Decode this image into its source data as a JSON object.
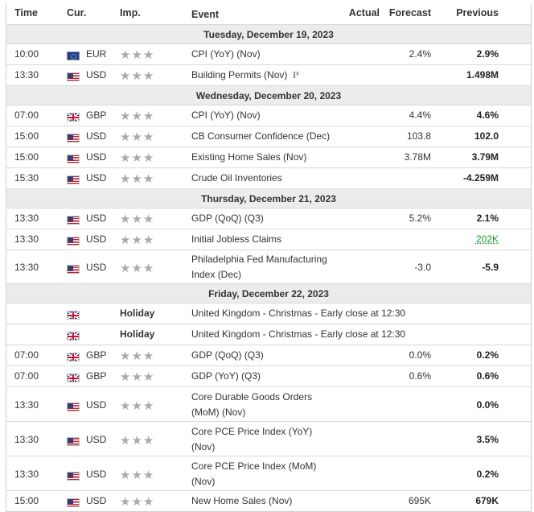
{
  "header": {
    "time": "Time",
    "currency": "Cur.",
    "importance": "Imp.",
    "event": "Event",
    "actual": "Actual",
    "forecast": "Forecast",
    "previous": "Previous"
  },
  "icons": {
    "importance": "three-gray-stars",
    "preliminary": "preliminary-p-icon",
    "flags": {
      "EUR": "eu-flag",
      "USD": "us-flag",
      "GBP": "uk-flag"
    }
  },
  "colors": {
    "date_band": "#ececec",
    "positive_previous": "#1a9c2e",
    "stars": "#aaaaaa"
  },
  "days": [
    {
      "date": "Tuesday, December 19, 2023",
      "events": [
        {
          "time": "10:00",
          "flag": "eu",
          "currency": "EUR",
          "importance": "★★★",
          "event": "CPI (YoY) (Nov)",
          "actual": "",
          "forecast": "2.4%",
          "previous": "2.9%"
        },
        {
          "time": "13:30",
          "flag": "us",
          "currency": "USD",
          "importance": "★★★",
          "event": "Building Permits (Nov)",
          "preliminary": "P",
          "actual": "",
          "forecast": "",
          "previous": "1.498M"
        }
      ]
    },
    {
      "date": "Wednesday, December 20, 2023",
      "events": [
        {
          "time": "07:00",
          "flag": "gb",
          "currency": "GBP",
          "importance": "★★★",
          "event": "CPI (YoY) (Nov)",
          "actual": "",
          "forecast": "4.4%",
          "previous": "4.6%"
        },
        {
          "time": "15:00",
          "flag": "us",
          "currency": "USD",
          "importance": "★★★",
          "event": "CB Consumer Confidence (Dec)",
          "actual": "",
          "forecast": "103.8",
          "previous": "102.0"
        },
        {
          "time": "15:00",
          "flag": "us",
          "currency": "USD",
          "importance": "★★★",
          "event": "Existing Home Sales (Nov)",
          "actual": "",
          "forecast": "3.78M",
          "previous": "3.79M"
        },
        {
          "time": "15:30",
          "flag": "us",
          "currency": "USD",
          "importance": "★★★",
          "event": "Crude Oil Inventories",
          "actual": "",
          "forecast": "",
          "previous": "-4.259M"
        }
      ]
    },
    {
      "date": "Thursday, December 21, 2023",
      "events": [
        {
          "time": "13:30",
          "flag": "us",
          "currency": "USD",
          "importance": "★★★",
          "event": "GDP (QoQ) (Q3)",
          "actual": "",
          "forecast": "5.2%",
          "previous": "2.1%"
        },
        {
          "time": "13:30",
          "flag": "us",
          "currency": "USD",
          "importance": "★★★",
          "event": "Initial Jobless Claims",
          "actual": "",
          "forecast": "",
          "previous": "202K",
          "previous_positive": true
        },
        {
          "time": "13:30",
          "flag": "us",
          "currency": "USD",
          "importance": "★★★",
          "event": "Philadelphia Fed Manufacturing",
          "event2": "Index (Dec)",
          "actual": "",
          "forecast": "-3.0",
          "previous": "-5.9"
        }
      ]
    },
    {
      "date": "Friday, December 22, 2023",
      "events": [
        {
          "time": "",
          "flag": "gb",
          "currency": "",
          "importance": "Holiday",
          "holiday": true,
          "event": "United Kingdom - Christmas - Early close at 12:30",
          "actual": "",
          "forecast": "",
          "previous": ""
        },
        {
          "time": "",
          "flag": "gb",
          "currency": "",
          "importance": "Holiday",
          "holiday": true,
          "event": "United Kingdom - Christmas - Early close at 12:30",
          "actual": "",
          "forecast": "",
          "previous": ""
        },
        {
          "time": "07:00",
          "flag": "gb",
          "currency": "GBP",
          "importance": "★★★",
          "event": "GDP (QoQ) (Q3)",
          "actual": "",
          "forecast": "0.0%",
          "previous": "0.2%"
        },
        {
          "time": "07:00",
          "flag": "gb",
          "currency": "GBP",
          "importance": "★★★",
          "event": "GDP (YoY) (Q3)",
          "actual": "",
          "forecast": "0.6%",
          "previous": "0.6%"
        },
        {
          "time": "13:30",
          "flag": "us",
          "currency": "USD",
          "importance": "★★★",
          "event": "Core Durable Goods Orders",
          "event2": "(MoM) (Nov)",
          "actual": "",
          "forecast": "",
          "previous": "0.0%"
        },
        {
          "time": "13:30",
          "flag": "us",
          "currency": "USD",
          "importance": "★★★",
          "event": "Core PCE Price Index (YoY)",
          "event2": "(Nov)",
          "actual": "",
          "forecast": "",
          "previous": "3.5%"
        },
        {
          "time": "13:30",
          "flag": "us",
          "currency": "USD",
          "importance": "★★★",
          "event": "Core PCE Price Index (MoM)",
          "event2": "(Nov)",
          "actual": "",
          "forecast": "",
          "previous": "0.2%"
        },
        {
          "time": "15:00",
          "flag": "us",
          "currency": "USD",
          "importance": "★★★",
          "event": "New Home Sales (Nov)",
          "actual": "",
          "forecast": "695K",
          "previous": "679K"
        }
      ]
    }
  ]
}
